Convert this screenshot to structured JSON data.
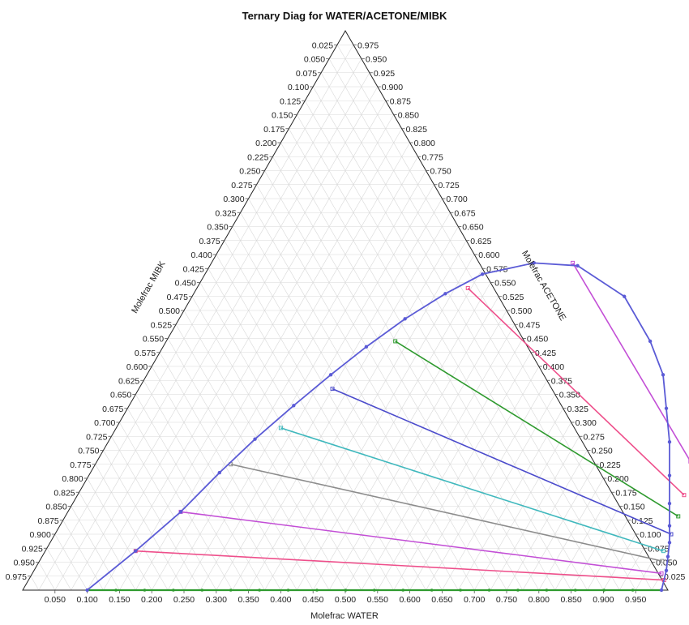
{
  "chart_data": {
    "type": "ternary",
    "title": "Ternary Diag for WATER/ACETONE/MIBK",
    "axes": {
      "bottom": "Molefrac WATER",
      "left": "Molefrac MIBK",
      "right": "Molefrac ACETONE"
    },
    "bottom_ticks": [
      "0.050",
      "0.100",
      "0.150",
      "0.200",
      "0.250",
      "0.300",
      "0.350",
      "0.400",
      "0.450",
      "0.500",
      "0.550",
      "0.600",
      "0.650",
      "0.700",
      "0.750",
      "0.800",
      "0.850",
      "0.900",
      "0.950"
    ],
    "left_ticks": [
      "0.025",
      "0.050",
      "0.075",
      "0.100",
      "0.125",
      "0.150",
      "0.175",
      "0.200",
      "0.225",
      "0.250",
      "0.275",
      "0.300",
      "0.325",
      "0.350",
      "0.375",
      "0.400",
      "0.425",
      "0.450",
      "0.475",
      "0.500",
      "0.525",
      "0.550",
      "0.575",
      "0.600",
      "0.625",
      "0.650",
      "0.675",
      "0.700",
      "0.725",
      "0.750",
      "0.775",
      "0.800",
      "0.825",
      "0.850",
      "0.875",
      "0.900",
      "0.925",
      "0.950",
      "0.975"
    ],
    "right_ticks": [
      "0.975",
      "0.950",
      "0.925",
      "0.900",
      "0.875",
      "0.850",
      "0.825",
      "0.800",
      "0.775",
      "0.750",
      "0.725",
      "0.700",
      "0.675",
      "0.650",
      "0.625",
      "0.600",
      "0.575",
      "0.550",
      "0.525",
      "0.500",
      "0.475",
      "0.450",
      "0.425",
      "0.400",
      "0.375",
      "0.350",
      "0.325",
      "0.300",
      "0.275",
      "0.250",
      "0.225",
      "0.200",
      "0.175",
      "0.150",
      "0.125",
      "0.100",
      "0.075",
      "0.050",
      "0.025"
    ],
    "binodal_curve": {
      "color": "#5b5bd6",
      "points": [
        {
          "water": 0.1,
          "acetone": 0.0
        },
        {
          "water": 0.14,
          "acetone": 0.07
        },
        {
          "water": 0.175,
          "acetone": 0.14
        },
        {
          "water": 0.2,
          "acetone": 0.21
        },
        {
          "water": 0.225,
          "acetone": 0.27
        },
        {
          "water": 0.255,
          "acetone": 0.33
        },
        {
          "water": 0.285,
          "acetone": 0.385
        },
        {
          "water": 0.315,
          "acetone": 0.435
        },
        {
          "water": 0.35,
          "acetone": 0.485
        },
        {
          "water": 0.39,
          "acetone": 0.53
        },
        {
          "water": 0.43,
          "acetone": 0.565
        },
        {
          "water": 0.5,
          "acetone": 0.585
        },
        {
          "water": 0.57,
          "acetone": 0.58
        },
        {
          "water": 0.67,
          "acetone": 0.525
        },
        {
          "water": 0.75,
          "acetone": 0.445
        },
        {
          "water": 0.8,
          "acetone": 0.385
        },
        {
          "water": 0.835,
          "acetone": 0.325
        },
        {
          "water": 0.87,
          "acetone": 0.265
        },
        {
          "water": 0.9,
          "acetone": 0.205
        },
        {
          "water": 0.925,
          "acetone": 0.155
        },
        {
          "water": 0.945,
          "acetone": 0.115
        },
        {
          "water": 0.96,
          "acetone": 0.085
        },
        {
          "water": 0.97,
          "acetone": 0.06
        },
        {
          "water": 0.98,
          "acetone": 0.035
        },
        {
          "water": 0.99,
          "acetone": 0.0
        }
      ]
    },
    "tie_lines": [
      {
        "color": "#ee4f8b",
        "from": {
          "water": 0.14,
          "acetone": 0.07
        },
        "to": {
          "water": 0.985,
          "acetone": 0.018
        }
      },
      {
        "color": "#c34fd6",
        "from": {
          "water": 0.175,
          "acetone": 0.14
        },
        "to": {
          "water": 0.975,
          "acetone": 0.03
        }
      },
      {
        "color": "#8c8c8c",
        "from": {
          "water": 0.21,
          "acetone": 0.225
        },
        "to": {
          "water": 0.965,
          "acetone": 0.052
        }
      },
      {
        "color": "#3fb8bd",
        "from": {
          "water": 0.255,
          "acetone": 0.29
        },
        "to": {
          "water": 0.958,
          "acetone": 0.07
        }
      },
      {
        "color": "#4b4bcc",
        "from": {
          "water": 0.3,
          "acetone": 0.36
        },
        "to": {
          "water": 0.955,
          "acetone": 0.1
        }
      },
      {
        "color": "#2e9a2e",
        "from": {
          "water": 0.355,
          "acetone": 0.445
        },
        "to": {
          "water": 0.95,
          "acetone": 0.132
        }
      },
      {
        "color": "#ee4f8b",
        "from": {
          "water": 0.42,
          "acetone": 0.54
        },
        "to": {
          "water": 0.94,
          "acetone": 0.17
        }
      },
      {
        "color": "#c34fd6",
        "from": {
          "water": 0.56,
          "acetone": 0.585
        },
        "to": {
          "water": 0.92,
          "acetone": 0.23
        }
      }
    ],
    "base_line": {
      "color": "#2e9a2e",
      "from": {
        "water": 0.1,
        "acetone": 0.0
      },
      "to": {
        "water": 0.99,
        "acetone": 0.0
      }
    },
    "grid": true
  }
}
